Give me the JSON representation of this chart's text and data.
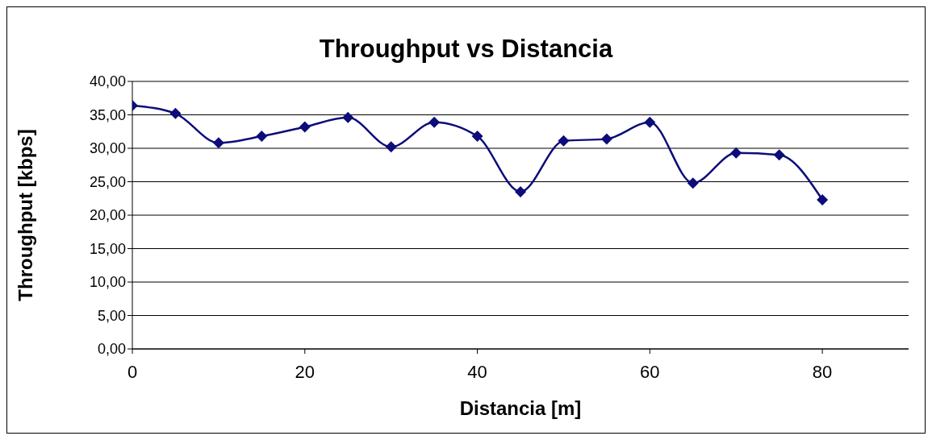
{
  "chart_data": {
    "type": "line",
    "title": "Throughput vs Distancia",
    "xlabel": "Distancia [m]",
    "ylabel": "Throughput [kbps]",
    "x": [
      0,
      5,
      10,
      15,
      20,
      25,
      30,
      35,
      40,
      45,
      50,
      55,
      60,
      65,
      70,
      75,
      80
    ],
    "series": [
      {
        "color": "#0c0c7a",
        "values": [
          36.4,
          35.2,
          30.8,
          31.8,
          33.2,
          34.6,
          30.2,
          33.9,
          31.8,
          23.5,
          31.1,
          31.4,
          33.9,
          24.8,
          29.3,
          29.0,
          22.3
        ]
      }
    ],
    "xlim": [
      0,
      90
    ],
    "xticks": [
      0,
      20,
      40,
      60,
      80
    ],
    "ylim": [
      0,
      40
    ],
    "yticks": [
      {
        "value": 0,
        "label": "0,00"
      },
      {
        "value": 5,
        "label": "5,00"
      },
      {
        "value": 10,
        "label": "10,00"
      },
      {
        "value": 15,
        "label": "15,00"
      },
      {
        "value": 20,
        "label": "20,00"
      },
      {
        "value": 25,
        "label": "25,00"
      },
      {
        "value": 30,
        "label": "30,00"
      },
      {
        "value": 35,
        "label": "35,00"
      },
      {
        "value": 40,
        "label": "40,00"
      }
    ],
    "grid": "y",
    "marker": "diamond",
    "line_style": "solid"
  }
}
